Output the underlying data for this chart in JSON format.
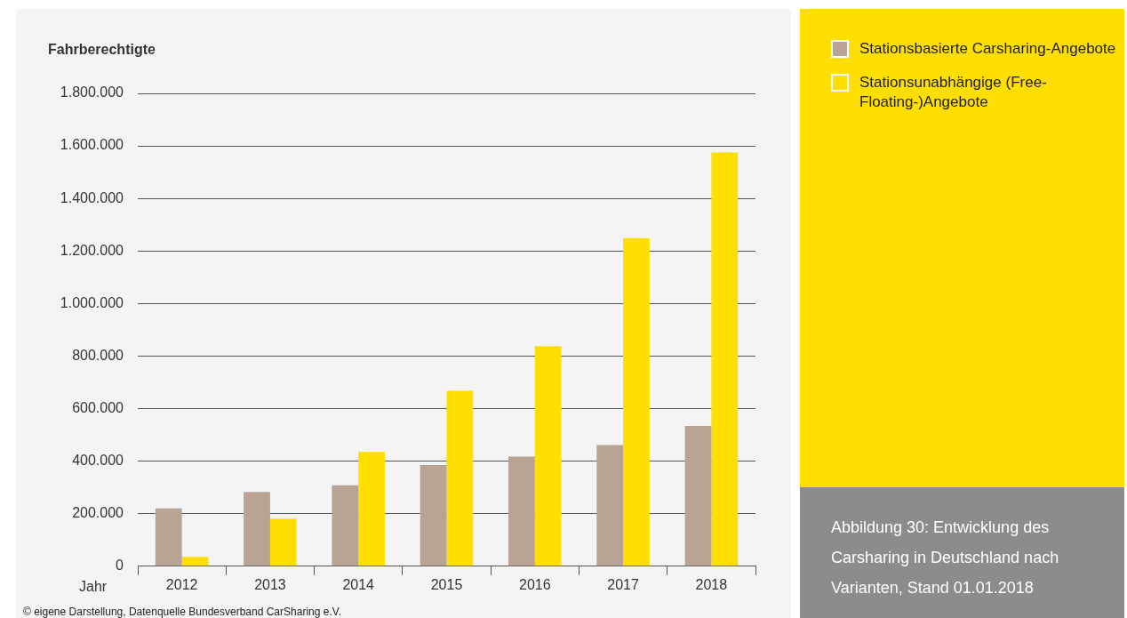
{
  "chart_data": {
    "type": "bar",
    "ylabel": "Fahrberechtigte",
    "xlabel": "Jahr",
    "categories": [
      "2012",
      "2013",
      "2014",
      "2015",
      "2016",
      "2017",
      "2018"
    ],
    "series": [
      {
        "name": "Stationsbasierte Carsharing-Angebote",
        "color": "#b9a395",
        "values": [
          220000,
          283000,
          308000,
          385000,
          417000,
          461000,
          534000
        ]
      },
      {
        "name": "Stationsunabhängige (Free-Floating-)Angebote",
        "color": "#ffde00",
        "values": [
          36000,
          181000,
          435000,
          668000,
          838000,
          1249000,
          1575000
        ]
      }
    ],
    "ylim": [
      0,
      1800000
    ],
    "yticks": [
      {
        "value": 0,
        "label": "0"
      },
      {
        "value": 200000,
        "label": "200.000"
      },
      {
        "value": 400000,
        "label": "400.000"
      },
      {
        "value": 600000,
        "label": "600.000"
      },
      {
        "value": 800000,
        "label": "800.000"
      },
      {
        "value": 1000000,
        "label": "1.000.000"
      },
      {
        "value": 1200000,
        "label": "1.200.000"
      },
      {
        "value": 1400000,
        "label": "1.400.000"
      },
      {
        "value": 1600000,
        "label": "1.600.000"
      },
      {
        "value": 1800000,
        "label": "1.800.000"
      }
    ],
    "grid": "y",
    "legend": "right",
    "annotations": [
      "© eigene Darstellung, Datenquelle Bundesverband CarSharing e.V.",
      "Abbildung 30: Entwicklung des Carsharing in Deutschland nach Varianten, Stand 01.01.2018"
    ]
  }
}
